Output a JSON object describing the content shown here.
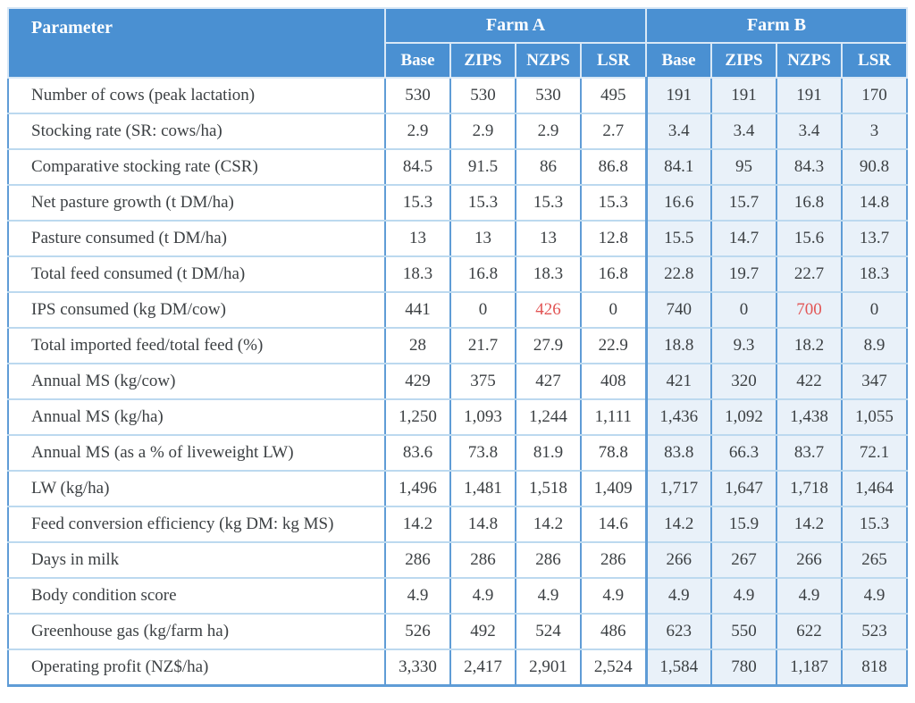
{
  "colors": {
    "header_bg": "#4a90d2",
    "header_text": "#ffffff",
    "header_divider": "#d9e8f6",
    "farmb_bg": "#e9f1f9",
    "row_border": "#bcd9ef",
    "col_border": "#5f9cd6",
    "body_text": "#3c4043",
    "accent_red": "#e25555"
  },
  "chart_data": {
    "type": "table",
    "header": {
      "parameter_label": "Parameter",
      "groups": [
        {
          "label": "Farm A",
          "scenarios": [
            "Base",
            "ZIPS",
            "NZPS",
            "LSR"
          ]
        },
        {
          "label": "Farm B",
          "scenarios": [
            "Base",
            "ZIPS",
            "NZPS",
            "LSR"
          ]
        }
      ]
    },
    "rows": [
      {
        "parameter": "Number of cows (peak lactation)",
        "values": [
          "530",
          "530",
          "530",
          "495",
          "191",
          "191",
          "191",
          "170"
        ],
        "red": []
      },
      {
        "parameter": "Stocking rate (SR: cows/ha)",
        "values": [
          "2.9",
          "2.9",
          "2.9",
          "2.7",
          "3.4",
          "3.4",
          "3.4",
          "3"
        ],
        "red": []
      },
      {
        "parameter": "Comparative stocking rate (CSR)",
        "values": [
          "84.5",
          "91.5",
          "86",
          "86.8",
          "84.1",
          "95",
          "84.3",
          "90.8"
        ],
        "red": []
      },
      {
        "parameter": "Net pasture growth (t DM/ha)",
        "values": [
          "15.3",
          "15.3",
          "15.3",
          "15.3",
          "16.6",
          "15.7",
          "16.8",
          "14.8"
        ],
        "red": []
      },
      {
        "parameter": "Pasture consumed (t DM/ha)",
        "values": [
          "13",
          "13",
          "13",
          "12.8",
          "15.5",
          "14.7",
          "15.6",
          "13.7"
        ],
        "red": []
      },
      {
        "parameter": "Total feed consumed (t DM/ha)",
        "values": [
          "18.3",
          "16.8",
          "18.3",
          "16.8",
          "22.8",
          "19.7",
          "22.7",
          "18.3"
        ],
        "red": []
      },
      {
        "parameter": "IPS consumed (kg DM/cow)",
        "values": [
          "441",
          "0",
          "426",
          "0",
          "740",
          "0",
          "700",
          "0"
        ],
        "red": [
          2,
          6
        ]
      },
      {
        "parameter": "Total imported feed/total feed (%)",
        "values": [
          "28",
          "21.7",
          "27.9",
          "22.9",
          "18.8",
          "9.3",
          "18.2",
          "8.9"
        ],
        "red": []
      },
      {
        "parameter": "Annual MS (kg/cow)",
        "values": [
          "429",
          "375",
          "427",
          "408",
          "421",
          "320",
          "422",
          "347"
        ],
        "red": []
      },
      {
        "parameter": "Annual MS (kg/ha)",
        "values": [
          "1,250",
          "1,093",
          "1,244",
          "1,111",
          "1,436",
          "1,092",
          "1,438",
          "1,055"
        ],
        "red": []
      },
      {
        "parameter": "Annual MS (as a % of liveweight LW)",
        "values": [
          "83.6",
          "73.8",
          "81.9",
          "78.8",
          "83.8",
          "66.3",
          "83.7",
          "72.1"
        ],
        "red": []
      },
      {
        "parameter": "LW (kg/ha)",
        "values": [
          "1,496",
          "1,481",
          "1,518",
          "1,409",
          "1,717",
          "1,647",
          "1,718",
          "1,464"
        ],
        "red": []
      },
      {
        "parameter": "Feed conversion efficiency (kg DM: kg MS)",
        "values": [
          "14.2",
          "14.8",
          "14.2",
          "14.6",
          "14.2",
          "15.9",
          "14.2",
          "15.3"
        ],
        "red": []
      },
      {
        "parameter": "Days in milk",
        "values": [
          "286",
          "286",
          "286",
          "286",
          "266",
          "267",
          "266",
          "265"
        ],
        "red": []
      },
      {
        "parameter": "Body condition score",
        "values": [
          "4.9",
          "4.9",
          "4.9",
          "4.9",
          "4.9",
          "4.9",
          "4.9",
          "4.9"
        ],
        "red": []
      },
      {
        "parameter": "Greenhouse gas (kg/farm ha)",
        "values": [
          "526",
          "492",
          "524",
          "486",
          "623",
          "550",
          "622",
          "523"
        ],
        "red": []
      },
      {
        "parameter": "Operating profit (NZ$/ha)",
        "values": [
          "3,330",
          "2,417",
          "2,901",
          "2,524",
          "1,584",
          "780",
          "1,187",
          "818"
        ],
        "red": []
      }
    ]
  }
}
